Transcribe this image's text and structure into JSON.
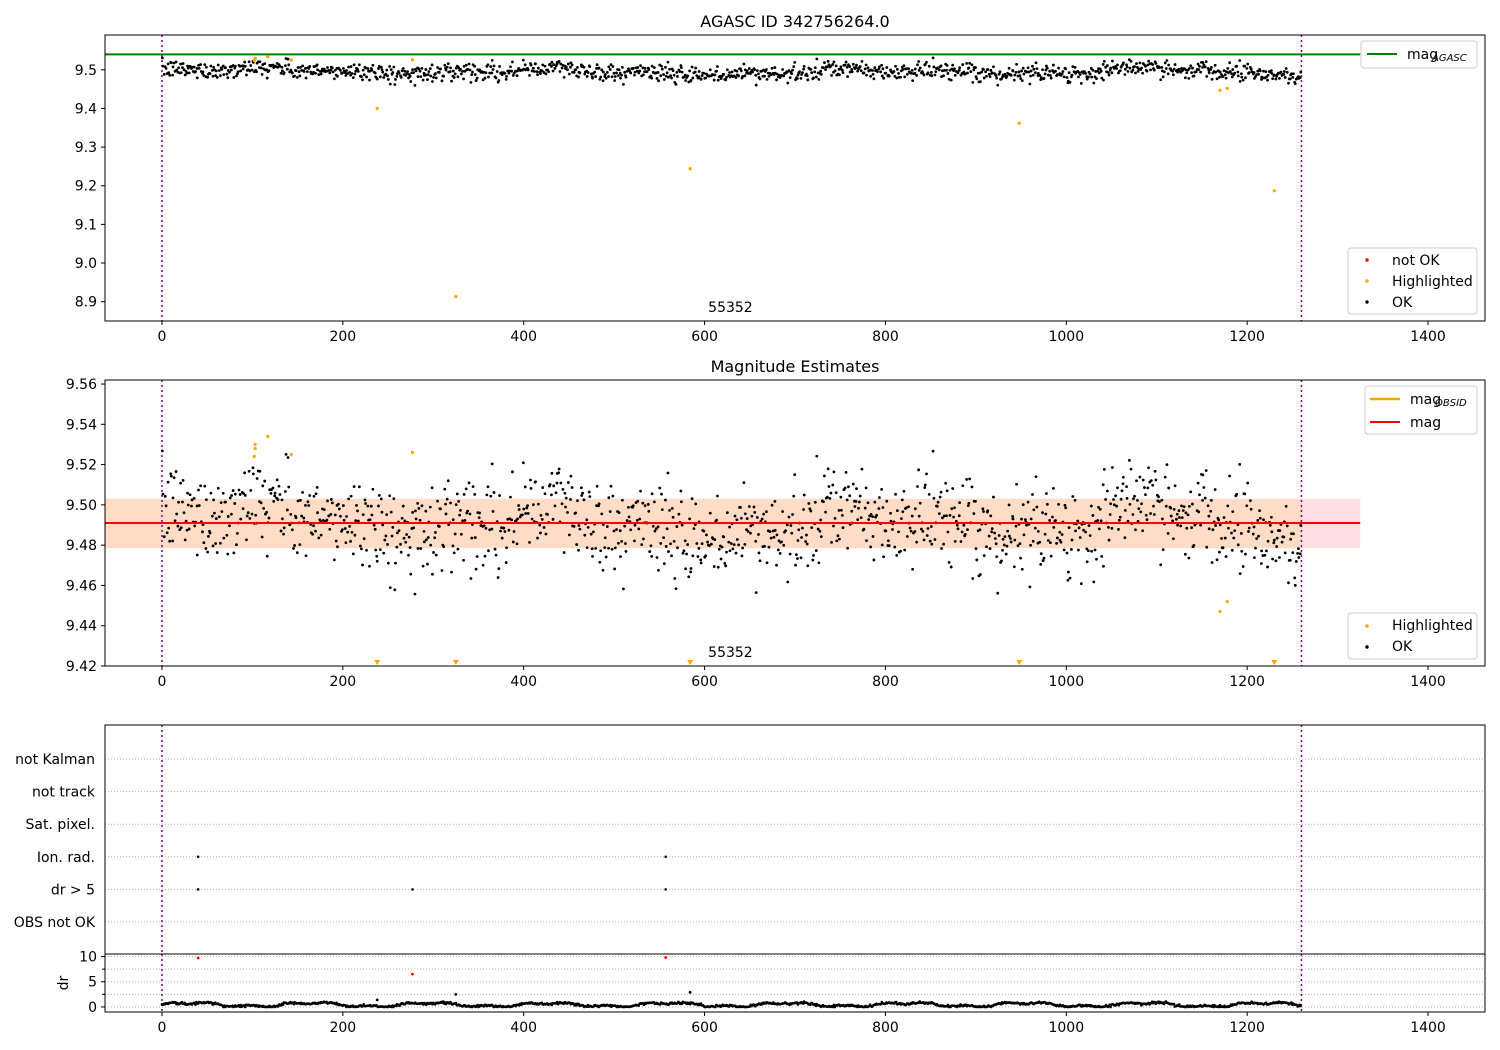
{
  "chart_data": [
    {
      "type": "scatter",
      "title": "AGASC ID 342756264.0",
      "xlim": [
        -63,
        1463
      ],
      "ylim": [
        8.85,
        9.59
      ],
      "xticks": [
        0,
        200,
        400,
        600,
        800,
        1000,
        1200,
        1400
      ],
      "yticks": [
        8.9,
        9.0,
        9.1,
        9.2,
        9.3,
        9.4,
        9.5
      ],
      "ytick_labels": [
        "8.9",
        "9.0",
        "9.1",
        "9.2",
        "9.3",
        "9.4",
        "9.5"
      ],
      "grid": false,
      "obs_label": "55352",
      "obs_label_x": 604,
      "vlines": [
        0,
        1260
      ],
      "hlines": [
        {
          "name": "mag_AGASC",
          "y": 9.54,
          "xmin": -63,
          "xmax": 1325,
          "color": "#008000"
        }
      ],
      "ok_series": {
        "name": "OK",
        "color": "#000000",
        "n": 1260,
        "mean": 9.491,
        "spread": 0.018,
        "scatter": 0.011
      },
      "highlighted": {
        "name": "Highlighted",
        "color": "#ffa500",
        "points": [
          {
            "x": 102,
            "y": 9.524
          },
          {
            "x": 103,
            "y": 9.528
          },
          {
            "x": 103,
            "y": 9.53
          },
          {
            "x": 117,
            "y": 9.534
          },
          {
            "x": 143,
            "y": 9.525
          },
          {
            "x": 238,
            "y": 9.4
          },
          {
            "x": 277,
            "y": 9.526
          },
          {
            "x": 325,
            "y": 8.913
          },
          {
            "x": 584,
            "y": 9.244
          },
          {
            "x": 948,
            "y": 9.362
          },
          {
            "x": 1170,
            "y": 9.447
          },
          {
            "x": 1178,
            "y": 9.452
          },
          {
            "x": 1230,
            "y": 9.187
          }
        ]
      },
      "legends": [
        {
          "position": "upper-right",
          "entries": [
            {
              "label_main": "mag",
              "label_sub": "AGASC",
              "kind": "line",
              "color": "#008000"
            }
          ]
        },
        {
          "position": "lower-right",
          "entries": [
            {
              "label": "not OK",
              "kind": "dot",
              "color": "#ff0000"
            },
            {
              "label": "Highlighted",
              "kind": "dot",
              "color": "#ffa500"
            },
            {
              "label": "OK",
              "kind": "dot",
              "color": "#000000"
            }
          ]
        }
      ]
    },
    {
      "type": "scatter",
      "title": "Magnitude Estimates",
      "xlim": [
        -63,
        1463
      ],
      "ylim": [
        9.42,
        9.562
      ],
      "xticks": [
        0,
        200,
        400,
        600,
        800,
        1000,
        1200,
        1400
      ],
      "yticks": [
        9.42,
        9.44,
        9.46,
        9.48,
        9.5,
        9.52,
        9.54,
        9.56
      ],
      "ytick_labels": [
        "9.42",
        "9.44",
        "9.46",
        "9.48",
        "9.50",
        "9.52",
        "9.54",
        "9.56"
      ],
      "grid": false,
      "obs_label": "55352",
      "obs_label_x": 604,
      "vlines": [
        0,
        1260
      ],
      "mag_line": {
        "name": "mag",
        "y": 9.491,
        "color": "#ff0000"
      },
      "mag_obsid": {
        "name": "mag_OBSID",
        "color": "#ffa500"
      },
      "bands": [
        {
          "y0": 9.4785,
          "y1": 9.503,
          "x0": -63,
          "x1": 1325,
          "color": "#ffc0cb",
          "opacity": 0.5
        },
        {
          "y0": 9.4785,
          "y1": 9.503,
          "x0": -63,
          "x1": 1262,
          "color": "#ffdab9",
          "opacity": 0.7
        }
      ],
      "ok_series": {
        "name": "OK",
        "color": "#000000",
        "n": 1260,
        "mean": 9.491,
        "spread": 0.018,
        "scatter": 0.011
      },
      "highlighted": {
        "name": "Highlighted",
        "color": "#ffa500",
        "points": [
          {
            "x": 102,
            "y": 9.524
          },
          {
            "x": 103,
            "y": 9.528
          },
          {
            "x": 103,
            "y": 9.53
          },
          {
            "x": 117,
            "y": 9.534
          },
          {
            "x": 143,
            "y": 9.525
          },
          {
            "x": 277,
            "y": 9.526
          },
          {
            "x": 1170,
            "y": 9.447
          },
          {
            "x": 1178,
            "y": 9.452
          }
        ],
        "below_range_x": [
          238,
          325,
          584,
          948,
          1230
        ]
      },
      "legends": [
        {
          "position": "upper-right",
          "entries": [
            {
              "label_main": "mag",
              "label_sub": "OBSID",
              "kind": "line",
              "color": "#ffa500"
            },
            {
              "label": "mag",
              "kind": "line",
              "color": "#ff0000"
            }
          ]
        },
        {
          "position": "lower-right",
          "entries": [
            {
              "label": "Highlighted",
              "kind": "dot",
              "color": "#ffa500"
            },
            {
              "label": "OK",
              "kind": "dot",
              "color": "#000000"
            }
          ]
        }
      ]
    },
    {
      "type": "scatter",
      "title": "",
      "xlim": [
        -63,
        1463
      ],
      "vlines": [
        0,
        1260
      ],
      "flag_rows": [
        "not Kalman",
        "not track",
        "Sat. pixel.",
        "Ion. rad.",
        "dr > 5",
        "OBS not OK"
      ],
      "flags": [
        {
          "row": "Ion. rad.",
          "x": [
            40,
            557
          ]
        },
        {
          "row": "dr > 5",
          "x": [
            40,
            277,
            557
          ]
        }
      ]
    },
    {
      "type": "scatter",
      "title": "",
      "xlim": [
        -63,
        1463
      ],
      "ylim": [
        -1,
        10.5
      ],
      "xticks": [
        0,
        200,
        400,
        600,
        800,
        1000,
        1200,
        1400
      ],
      "yticks": [
        0,
        5,
        10
      ],
      "ytick_labels": [
        "0",
        "5",
        "10"
      ],
      "ylabel": "dr",
      "grid": true,
      "vlines": [
        0,
        1260
      ],
      "dr_ok": {
        "name": "dr",
        "color": "#000000",
        "n": 1260,
        "baseline": 0.45
      },
      "dr_outliers": [
        {
          "x": 40,
          "y": 9.7,
          "color": "#ff0000"
        },
        {
          "x": 277,
          "y": 6.5,
          "color": "#ff0000"
        },
        {
          "x": 557,
          "y": 9.8,
          "color": "#ff0000"
        },
        {
          "x": 325,
          "y": 2.5,
          "color": "#000000"
        },
        {
          "x": 584,
          "y": 2.9,
          "color": "#000000"
        },
        {
          "x": 238,
          "y": 1.4,
          "color": "#000000"
        }
      ]
    }
  ]
}
